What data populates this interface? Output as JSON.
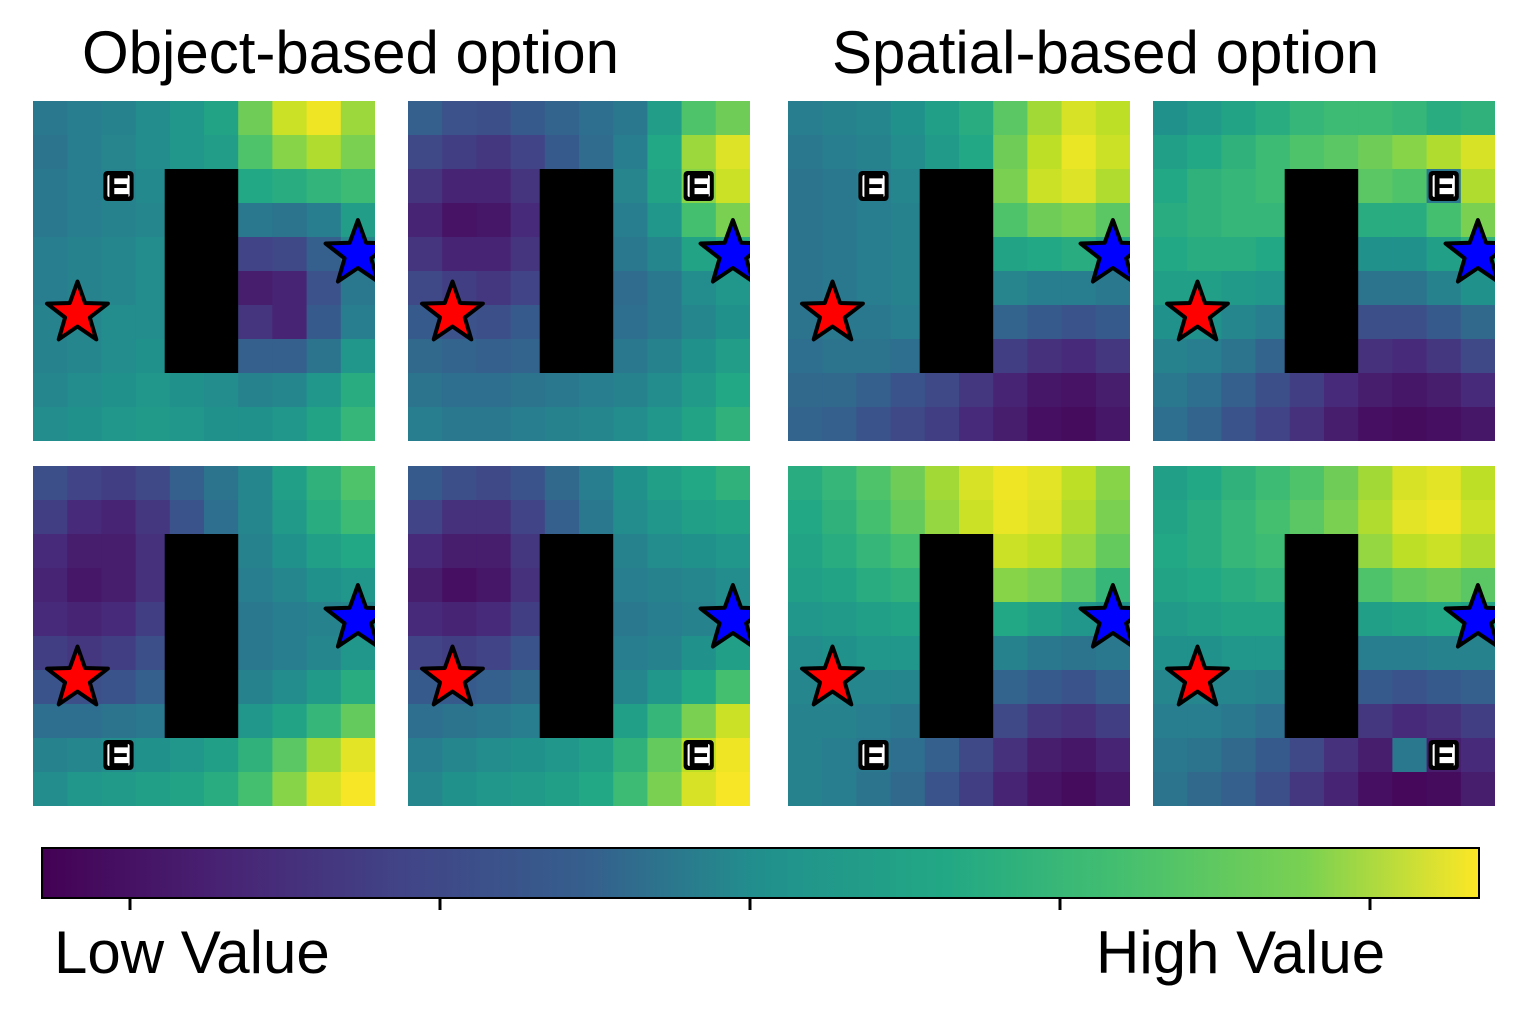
{
  "titles": {
    "left": "Object-based option",
    "right": "Spatial-based option"
  },
  "colorbar": {
    "low_label": "Low Value",
    "high_label": "High Value",
    "colormap": "viridis",
    "tick_count": 5
  },
  "marker_colors": {
    "start_star": "#ff0000",
    "goal_star": "#0000ff",
    "obstacle": "#000000",
    "exit_badge": "#ffffff"
  },
  "exit_letter": "E",
  "panels": [
    {
      "name": "object-top-1",
      "exit": [
        2,
        2
      ],
      "grid": [
        [
          0.4,
          0.42,
          0.44,
          0.48,
          0.52,
          0.58,
          0.78,
          0.92,
          0.98,
          0.85
        ],
        [
          0.38,
          0.42,
          0.45,
          0.48,
          0.52,
          0.55,
          0.72,
          0.82,
          0.88,
          0.8
        ],
        [
          0.4,
          0.42,
          0.44,
          0.47,
          0.5,
          0.52,
          0.6,
          0.62,
          0.65,
          0.68
        ],
        [
          0.4,
          0.42,
          0.44,
          0.46,
          0.48,
          0.46,
          0.4,
          0.38,
          0.42,
          0.55
        ],
        [
          0.42,
          0.44,
          0.46,
          0.48,
          0.48,
          0.4,
          0.2,
          0.22,
          0.3,
          0.45
        ],
        [
          0.42,
          0.44,
          0.46,
          0.48,
          0.48,
          0.35,
          0.08,
          0.1,
          0.25,
          0.4
        ],
        [
          0.44,
          0.46,
          0.48,
          0.48,
          0.48,
          0.4,
          0.15,
          0.1,
          0.28,
          0.42
        ],
        [
          0.44,
          0.46,
          0.48,
          0.5,
          0.48,
          0.45,
          0.3,
          0.3,
          0.38,
          0.52
        ],
        [
          0.46,
          0.48,
          0.5,
          0.52,
          0.5,
          0.48,
          0.44,
          0.46,
          0.52,
          0.62
        ],
        [
          0.48,
          0.5,
          0.52,
          0.54,
          0.52,
          0.5,
          0.5,
          0.52,
          0.58,
          0.66
        ]
      ]
    },
    {
      "name": "object-top-2",
      "exit": [
        2,
        8
      ],
      "grid": [
        [
          0.3,
          0.25,
          0.24,
          0.28,
          0.32,
          0.36,
          0.4,
          0.55,
          0.72,
          0.78
        ],
        [
          0.22,
          0.18,
          0.16,
          0.2,
          0.28,
          0.35,
          0.42,
          0.6,
          0.85,
          0.95
        ],
        [
          0.15,
          0.1,
          0.1,
          0.15,
          0.25,
          0.35,
          0.45,
          0.58,
          0.82,
          0.92
        ],
        [
          0.1,
          0.05,
          0.06,
          0.12,
          0.22,
          0.32,
          0.42,
          0.52,
          0.7,
          0.8
        ],
        [
          0.15,
          0.1,
          0.1,
          0.15,
          0.25,
          0.32,
          0.4,
          0.46,
          0.58,
          0.62
        ],
        [
          0.22,
          0.18,
          0.16,
          0.2,
          0.28,
          0.32,
          0.35,
          0.4,
          0.48,
          0.52
        ],
        [
          0.28,
          0.25,
          0.24,
          0.28,
          0.32,
          0.34,
          0.36,
          0.4,
          0.46,
          0.5
        ],
        [
          0.34,
          0.32,
          0.3,
          0.32,
          0.36,
          0.38,
          0.4,
          0.44,
          0.5,
          0.55
        ],
        [
          0.38,
          0.36,
          0.36,
          0.38,
          0.4,
          0.42,
          0.44,
          0.48,
          0.54,
          0.6
        ],
        [
          0.42,
          0.4,
          0.4,
          0.42,
          0.44,
          0.46,
          0.48,
          0.52,
          0.58,
          0.64
        ]
      ]
    },
    {
      "name": "spatial-top-1",
      "exit": [
        2,
        2
      ],
      "grid": [
        [
          0.42,
          0.44,
          0.46,
          0.5,
          0.56,
          0.62,
          0.74,
          0.86,
          0.94,
          0.9
        ],
        [
          0.4,
          0.42,
          0.44,
          0.48,
          0.54,
          0.6,
          0.78,
          0.9,
          0.97,
          0.92
        ],
        [
          0.38,
          0.4,
          0.42,
          0.46,
          0.52,
          0.58,
          0.8,
          0.92,
          0.95,
          0.88
        ],
        [
          0.38,
          0.4,
          0.42,
          0.44,
          0.5,
          0.55,
          0.72,
          0.78,
          0.8,
          0.74
        ],
        [
          0.38,
          0.4,
          0.42,
          0.44,
          0.48,
          0.52,
          0.58,
          0.6,
          0.62,
          0.58
        ],
        [
          0.38,
          0.4,
          0.42,
          0.44,
          0.46,
          0.48,
          0.45,
          0.42,
          0.42,
          0.4
        ],
        [
          0.38,
          0.4,
          0.4,
          0.42,
          0.42,
          0.4,
          0.32,
          0.28,
          0.26,
          0.28
        ],
        [
          0.36,
          0.38,
          0.38,
          0.36,
          0.3,
          0.24,
          0.18,
          0.14,
          0.12,
          0.16
        ],
        [
          0.34,
          0.34,
          0.3,
          0.26,
          0.22,
          0.16,
          0.1,
          0.06,
          0.05,
          0.08
        ],
        [
          0.32,
          0.3,
          0.26,
          0.22,
          0.18,
          0.12,
          0.08,
          0.04,
          0.03,
          0.06
        ]
      ]
    },
    {
      "name": "spatial-top-2",
      "exit": [
        2,
        8
      ],
      "grid": [
        [
          0.5,
          0.54,
          0.58,
          0.62,
          0.66,
          0.68,
          0.68,
          0.66,
          0.62,
          0.64
        ],
        [
          0.56,
          0.6,
          0.64,
          0.68,
          0.72,
          0.74,
          0.78,
          0.82,
          0.88,
          0.94
        ],
        [
          0.6,
          0.64,
          0.66,
          0.68,
          0.7,
          0.72,
          0.74,
          0.72,
          0.4,
          0.88
        ],
        [
          0.62,
          0.64,
          0.66,
          0.66,
          0.66,
          0.64,
          0.62,
          0.62,
          0.7,
          0.8
        ],
        [
          0.6,
          0.62,
          0.62,
          0.6,
          0.58,
          0.54,
          0.5,
          0.5,
          0.56,
          0.64
        ],
        [
          0.56,
          0.56,
          0.54,
          0.52,
          0.48,
          0.42,
          0.38,
          0.38,
          0.44,
          0.5
        ],
        [
          0.5,
          0.5,
          0.46,
          0.42,
          0.36,
          0.3,
          0.24,
          0.24,
          0.28,
          0.34
        ],
        [
          0.44,
          0.42,
          0.38,
          0.32,
          0.26,
          0.2,
          0.14,
          0.12,
          0.16,
          0.22
        ],
        [
          0.4,
          0.36,
          0.3,
          0.24,
          0.18,
          0.12,
          0.08,
          0.06,
          0.08,
          0.12
        ],
        [
          0.36,
          0.32,
          0.26,
          0.2,
          0.14,
          0.08,
          0.04,
          0.03,
          0.04,
          0.06
        ]
      ]
    },
    {
      "name": "object-bottom-1",
      "exit": [
        8,
        2
      ],
      "grid": [
        [
          0.24,
          0.2,
          0.18,
          0.22,
          0.3,
          0.38,
          0.46,
          0.56,
          0.64,
          0.72
        ],
        [
          0.18,
          0.12,
          0.1,
          0.16,
          0.26,
          0.36,
          0.46,
          0.54,
          0.62,
          0.68
        ],
        [
          0.12,
          0.08,
          0.08,
          0.14,
          0.24,
          0.34,
          0.44,
          0.5,
          0.56,
          0.6
        ],
        [
          0.1,
          0.06,
          0.08,
          0.14,
          0.24,
          0.34,
          0.42,
          0.46,
          0.5,
          0.52
        ],
        [
          0.12,
          0.1,
          0.12,
          0.18,
          0.26,
          0.34,
          0.4,
          0.42,
          0.44,
          0.46
        ],
        [
          0.18,
          0.16,
          0.18,
          0.24,
          0.3,
          0.36,
          0.4,
          0.42,
          0.46,
          0.52
        ],
        [
          0.26,
          0.24,
          0.26,
          0.3,
          0.34,
          0.4,
          0.44,
          0.48,
          0.54,
          0.62
        ],
        [
          0.36,
          0.36,
          0.38,
          0.4,
          0.42,
          0.46,
          0.52,
          0.58,
          0.66,
          0.76
        ],
        [
          0.44,
          0.46,
          0.48,
          0.5,
          0.52,
          0.56,
          0.64,
          0.74,
          0.86,
          0.96
        ],
        [
          0.48,
          0.52,
          0.54,
          0.56,
          0.58,
          0.62,
          0.7,
          0.82,
          0.94,
          0.99
        ]
      ]
    },
    {
      "name": "object-bottom-2",
      "exit": [
        8,
        8
      ],
      "grid": [
        [
          0.28,
          0.24,
          0.22,
          0.26,
          0.34,
          0.42,
          0.5,
          0.56,
          0.6,
          0.64
        ],
        [
          0.2,
          0.14,
          0.14,
          0.2,
          0.3,
          0.4,
          0.48,
          0.52,
          0.56,
          0.58
        ],
        [
          0.12,
          0.08,
          0.08,
          0.16,
          0.28,
          0.38,
          0.44,
          0.48,
          0.5,
          0.52
        ],
        [
          0.08,
          0.04,
          0.06,
          0.14,
          0.26,
          0.36,
          0.42,
          0.44,
          0.46,
          0.48
        ],
        [
          0.12,
          0.1,
          0.12,
          0.18,
          0.28,
          0.36,
          0.4,
          0.42,
          0.44,
          0.48
        ],
        [
          0.2,
          0.18,
          0.2,
          0.26,
          0.32,
          0.38,
          0.42,
          0.44,
          0.5,
          0.56
        ],
        [
          0.28,
          0.28,
          0.3,
          0.34,
          0.38,
          0.42,
          0.46,
          0.52,
          0.6,
          0.7
        ],
        [
          0.36,
          0.38,
          0.4,
          0.42,
          0.44,
          0.48,
          0.56,
          0.66,
          0.8,
          0.92
        ],
        [
          0.42,
          0.46,
          0.48,
          0.5,
          0.52,
          0.56,
          0.64,
          0.76,
          0.9,
          0.98
        ],
        [
          0.46,
          0.5,
          0.52,
          0.54,
          0.56,
          0.6,
          0.68,
          0.8,
          0.94,
          0.99
        ]
      ]
    },
    {
      "name": "spatial-bottom-1",
      "exit": [
        8,
        2
      ],
      "grid": [
        [
          0.62,
          0.66,
          0.72,
          0.78,
          0.86,
          0.94,
          0.98,
          0.96,
          0.9,
          0.82
        ],
        [
          0.6,
          0.64,
          0.7,
          0.76,
          0.84,
          0.92,
          0.97,
          0.95,
          0.88,
          0.8
        ],
        [
          0.58,
          0.62,
          0.66,
          0.7,
          0.76,
          0.84,
          0.92,
          0.9,
          0.84,
          0.76
        ],
        [
          0.56,
          0.58,
          0.62,
          0.64,
          0.68,
          0.74,
          0.82,
          0.8,
          0.74,
          0.66
        ],
        [
          0.52,
          0.54,
          0.56,
          0.58,
          0.6,
          0.62,
          0.6,
          0.56,
          0.52,
          0.5
        ],
        [
          0.48,
          0.5,
          0.52,
          0.52,
          0.52,
          0.5,
          0.44,
          0.4,
          0.38,
          0.4
        ],
        [
          0.46,
          0.46,
          0.46,
          0.46,
          0.44,
          0.4,
          0.32,
          0.28,
          0.26,
          0.3
        ],
        [
          0.44,
          0.44,
          0.42,
          0.4,
          0.36,
          0.3,
          0.22,
          0.16,
          0.14,
          0.18
        ],
        [
          0.44,
          0.42,
          0.4,
          0.36,
          0.3,
          0.22,
          0.14,
          0.08,
          0.06,
          0.1
        ],
        [
          0.44,
          0.42,
          0.38,
          0.34,
          0.26,
          0.18,
          0.1,
          0.05,
          0.03,
          0.06
        ]
      ]
    },
    {
      "name": "spatial-bottom-2",
      "exit": [
        8,
        8
      ],
      "grid": [
        [
          0.56,
          0.6,
          0.64,
          0.68,
          0.72,
          0.78,
          0.86,
          0.94,
          0.96,
          0.9
        ],
        [
          0.58,
          0.62,
          0.66,
          0.7,
          0.74,
          0.8,
          0.88,
          0.96,
          0.98,
          0.92
        ],
        [
          0.6,
          0.62,
          0.66,
          0.68,
          0.72,
          0.76,
          0.84,
          0.9,
          0.92,
          0.88
        ],
        [
          0.58,
          0.6,
          0.62,
          0.64,
          0.66,
          0.68,
          0.72,
          0.76,
          0.78,
          0.74
        ],
        [
          0.54,
          0.56,
          0.58,
          0.58,
          0.58,
          0.56,
          0.56,
          0.58,
          0.6,
          0.58
        ],
        [
          0.5,
          0.5,
          0.52,
          0.52,
          0.5,
          0.46,
          0.42,
          0.42,
          0.44,
          0.44
        ],
        [
          0.46,
          0.46,
          0.46,
          0.44,
          0.4,
          0.34,
          0.28,
          0.26,
          0.28,
          0.3
        ],
        [
          0.42,
          0.42,
          0.4,
          0.36,
          0.3,
          0.22,
          0.16,
          0.12,
          0.14,
          0.18
        ],
        [
          0.4,
          0.38,
          0.34,
          0.28,
          0.22,
          0.14,
          0.08,
          0.4,
          0.08,
          0.12
        ],
        [
          0.38,
          0.34,
          0.3,
          0.24,
          0.16,
          0.1,
          0.04,
          0.02,
          0.03,
          0.08
        ]
      ]
    }
  ]
}
